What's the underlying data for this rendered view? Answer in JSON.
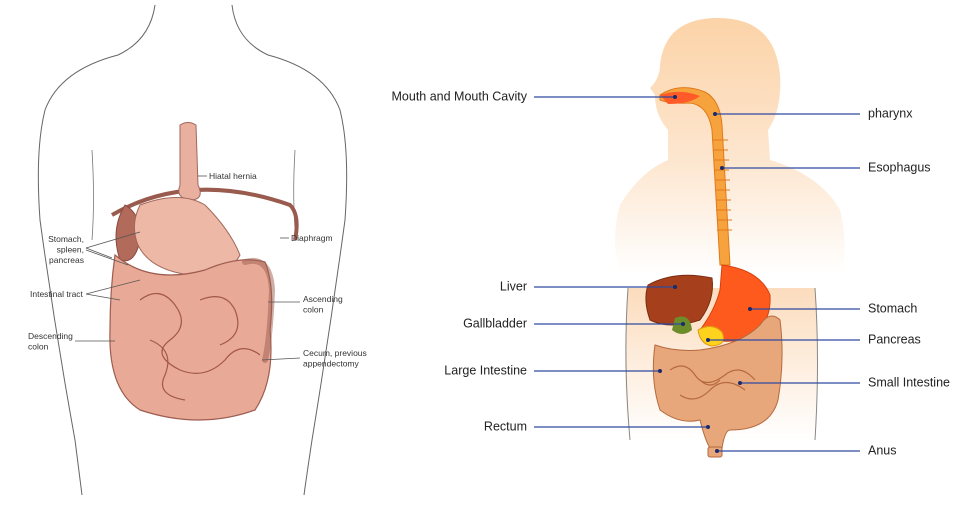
{
  "left_panel": {
    "labels": [
      {
        "lines": [
          "Hiatal hernia"
        ]
      },
      {
        "lines": [
          "Diaphragm"
        ]
      },
      {
        "lines": [
          "Stomach,",
          "spleen,",
          "pancreas"
        ]
      },
      {
        "lines": [
          "Intestinal tract"
        ]
      },
      {
        "lines": [
          "Ascending",
          "colon"
        ]
      },
      {
        "lines": [
          "Descending",
          "colon"
        ]
      },
      {
        "lines": [
          "Cecum, previous",
          "appendectomy"
        ]
      }
    ]
  },
  "right_panel": {
    "labels": [
      {
        "text": "Mouth and Mouth Cavity"
      },
      {
        "text": "pharynx"
      },
      {
        "text": "Esophagus"
      },
      {
        "text": "Liver"
      },
      {
        "text": "Stomach"
      },
      {
        "text": "Gallbladder"
      },
      {
        "text": "Pancreas"
      },
      {
        "text": "Large Intestine"
      },
      {
        "text": "Small Intestine"
      },
      {
        "text": "Rectum"
      },
      {
        "text": "Anus"
      }
    ]
  }
}
